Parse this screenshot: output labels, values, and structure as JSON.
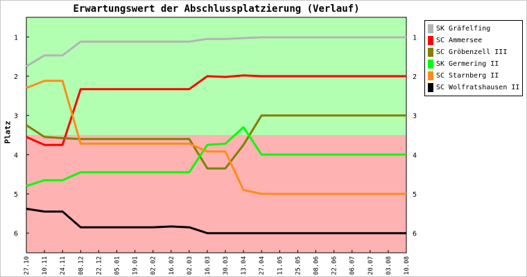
{
  "chart_data": {
    "type": "line",
    "title": "Erwartungswert der Abschlussplatzierung (Verlauf)",
    "ylabel": "Platz",
    "xlabel": "",
    "ylim": [
      6.5,
      0.5
    ],
    "y_inverted": true,
    "yticks": [
      "1",
      "2",
      "3",
      "4",
      "5",
      "6"
    ],
    "grid": false,
    "legend_position": "right",
    "background_bands": [
      {
        "from": 0.5,
        "to": 3.5,
        "color": "#b2ffb2"
      },
      {
        "from": 3.5,
        "to": 6.5,
        "color": "#ffb2b2"
      }
    ],
    "categories": [
      "27.10",
      "10.11",
      "24.11",
      "08.12",
      "22.12",
      "05.01",
      "19.01",
      "02.02",
      "16.02",
      "02.03",
      "16.03",
      "30.03",
      "13.04",
      "27.04",
      "11.05",
      "25.05",
      "08.06",
      "22.06",
      "06.07",
      "20.07",
      "03.08",
      "10.08"
    ],
    "series": [
      {
        "name": "SK Gräfelfing",
        "color": "#b4b4b4",
        "values": [
          1.75,
          1.47,
          1.47,
          1.12,
          1.12,
          1.12,
          1.12,
          1.12,
          1.12,
          1.12,
          1.05,
          1.05,
          1.03,
          1.01,
          1.01,
          1.01,
          1.01,
          1.01,
          1.01,
          1.01,
          1.01,
          1.01
        ]
      },
      {
        "name": "SC Ammersee",
        "color": "#ff0000",
        "values": [
          3.55,
          3.75,
          3.75,
          2.33,
          2.33,
          2.33,
          2.33,
          2.33,
          2.33,
          2.33,
          2.0,
          2.02,
          1.98,
          2.0,
          2.0,
          2.0,
          2.0,
          2.0,
          2.0,
          2.0,
          2.0,
          2.0
        ]
      },
      {
        "name": "SC Gröbenzell III",
        "color": "#808000",
        "values": [
          3.25,
          3.55,
          3.58,
          3.6,
          3.6,
          3.6,
          3.6,
          3.6,
          3.6,
          3.6,
          4.35,
          4.35,
          3.75,
          3.0,
          3.0,
          3.0,
          3.0,
          3.0,
          3.0,
          3.0,
          3.0,
          3.0
        ]
      },
      {
        "name": "SK Germering II",
        "color": "#00ff00",
        "values": [
          4.8,
          4.65,
          4.65,
          4.45,
          4.45,
          4.45,
          4.45,
          4.45,
          4.45,
          4.45,
          3.75,
          3.72,
          3.3,
          4.0,
          4.0,
          4.0,
          4.0,
          4.0,
          4.0,
          4.0,
          4.0,
          4.0
        ]
      },
      {
        "name": "SC Starnberg II",
        "color": "#ff8c1a",
        "values": [
          2.3,
          2.12,
          2.12,
          3.72,
          3.72,
          3.72,
          3.72,
          3.72,
          3.72,
          3.72,
          3.92,
          3.92,
          4.9,
          5.0,
          5.0,
          5.0,
          5.0,
          5.0,
          5.0,
          5.0,
          5.0,
          5.0
        ]
      },
      {
        "name": "SC Wolfratshausen II",
        "color": "#000000",
        "values": [
          5.38,
          5.45,
          5.45,
          5.85,
          5.85,
          5.85,
          5.85,
          5.85,
          5.83,
          5.85,
          6.0,
          6.0,
          6.0,
          6.0,
          6.0,
          6.0,
          6.0,
          6.0,
          6.0,
          6.0,
          6.0,
          6.0
        ]
      }
    ]
  }
}
